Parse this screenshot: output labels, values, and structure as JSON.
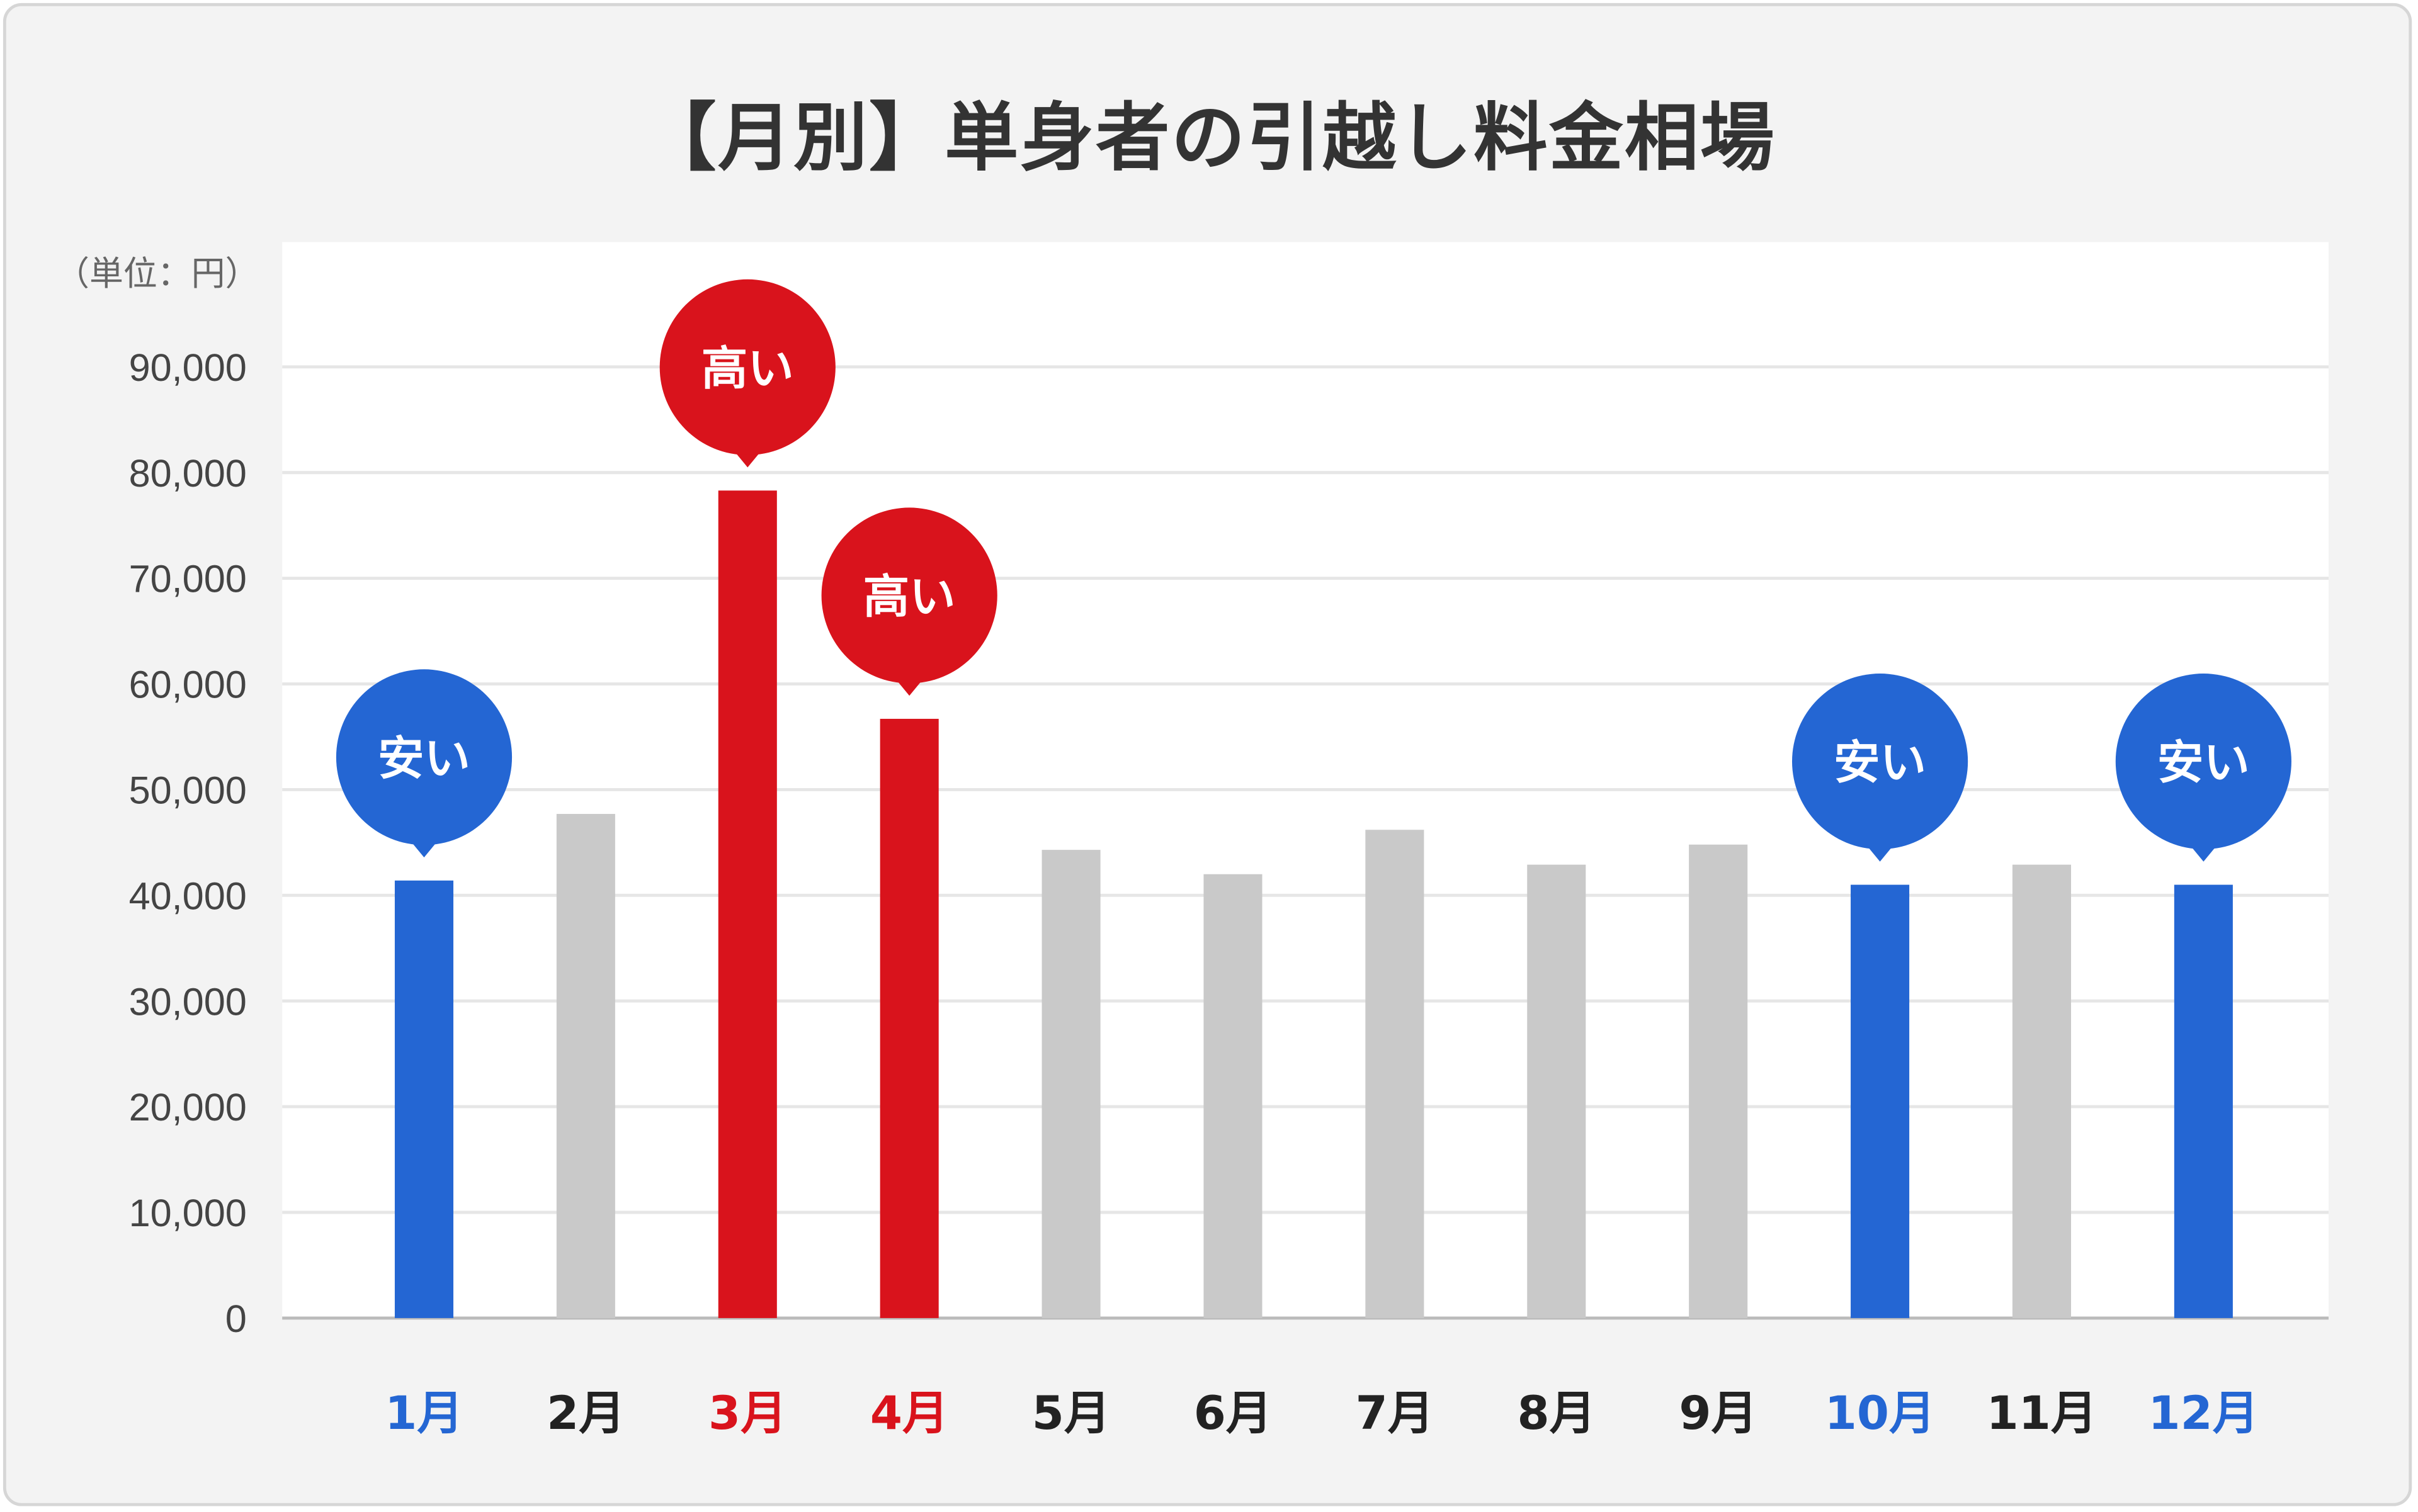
{
  "chart_data": {
    "type": "bar",
    "title": "【月別】単身者の引越し料金相場",
    "ylabel": "（単位：円）",
    "xlabel": "",
    "ylim": [
      0,
      90000
    ],
    "yticks": [
      "0",
      "10,000",
      "20,000",
      "30,000",
      "40,000",
      "50,000",
      "60,000",
      "70,000",
      "80,000",
      "90,000"
    ],
    "grid": true,
    "categories": [
      "1月",
      "2月",
      "3月",
      "4月",
      "5月",
      "6月",
      "7月",
      "8月",
      "9月",
      "10月",
      "11月",
      "12月"
    ],
    "values": [
      41400,
      47700,
      78300,
      56700,
      44300,
      42000,
      46200,
      42900,
      44800,
      41000,
      42900,
      41000
    ],
    "highlight": [
      "cheap",
      "normal",
      "high",
      "high",
      "normal",
      "normal",
      "normal",
      "normal",
      "normal",
      "cheap",
      "normal",
      "cheap"
    ],
    "annotations": {
      "cheap": "安い",
      "high": "高い"
    },
    "colors": {
      "cheap": "#2466d3",
      "high": "#d9131c",
      "normal": "#c9c9c9",
      "normal_label": "#222222",
      "grid": "#e6e6e6"
    }
  }
}
